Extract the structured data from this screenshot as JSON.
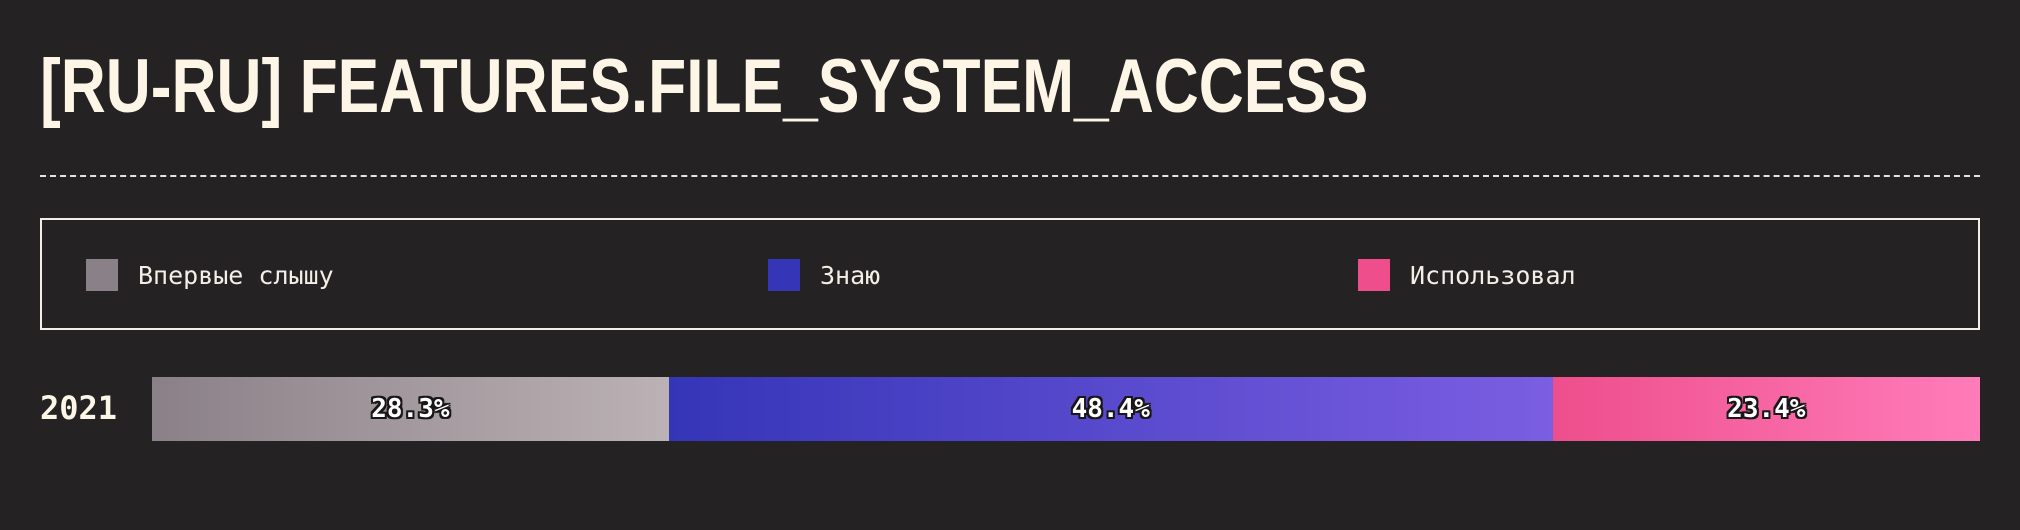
{
  "title": "[RU-RU] FEATURES.FILE_SYSTEM_ACCESS",
  "legend": [
    {
      "label": "Впервые слышу",
      "color": "#8a8087"
    },
    {
      "label": "Знаю",
      "color": "#3535b8"
    },
    {
      "label": "Использовал",
      "color": "#ee4e8c"
    }
  ],
  "chart_data": {
    "type": "bar",
    "stacked": true,
    "orientation": "horizontal",
    "categories": [
      "2021"
    ],
    "series": [
      {
        "name": "Впервые слышу",
        "values": [
          28.3
        ],
        "label": "28.3%",
        "gradient": [
          "#8a8087",
          "#bbb2b5"
        ]
      },
      {
        "name": "Знаю",
        "values": [
          48.4
        ],
        "label": "48.4%",
        "gradient": [
          "#3535b8",
          "#7b5ee2"
        ]
      },
      {
        "name": "Использовал",
        "values": [
          23.4
        ],
        "label": "23.4%",
        "gradient": [
          "#ee4e8c",
          "#ff7cb9"
        ]
      }
    ],
    "unit": "%"
  }
}
